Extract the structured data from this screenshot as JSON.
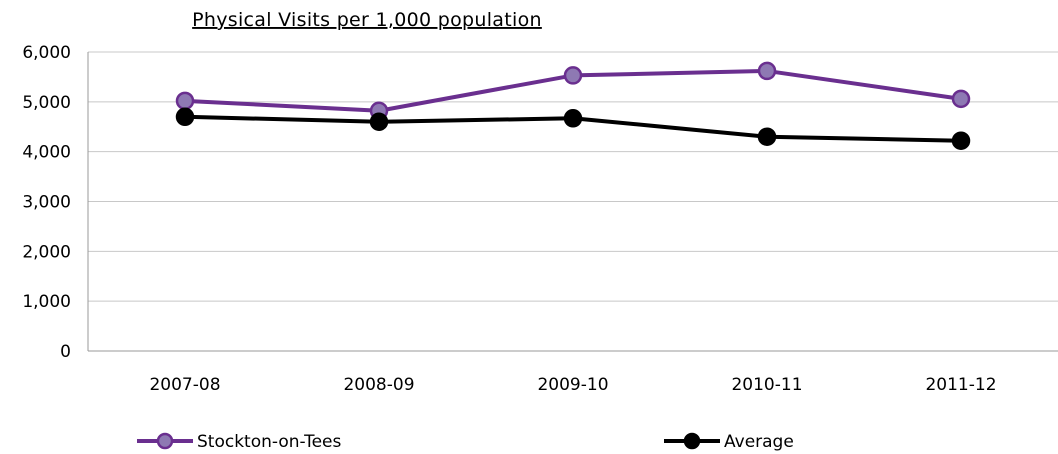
{
  "chart_data": {
    "type": "line",
    "title": "Physical Visits per 1,000 population",
    "xlabel": "",
    "ylabel": "",
    "categories": [
      "2007-08",
      "2008-09",
      "2009-10",
      "2010-11",
      "2011-12"
    ],
    "yticks": [
      "0",
      "1,000",
      "2,000",
      "3,000",
      "4,000",
      "5,000",
      "6,000"
    ],
    "ylim": [
      0,
      6000
    ],
    "grid": true,
    "legend_position": "bottom",
    "series": [
      {
        "name": "Stockton-on-Tees",
        "values": [
          5020,
          4820,
          5530,
          5620,
          5060
        ],
        "color": "#6a2f8f",
        "marker_fill": "#8e79b3"
      },
      {
        "name": "Average",
        "values": [
          4700,
          4600,
          4670,
          4300,
          4220
        ],
        "color": "#000000",
        "marker_fill": "#000000"
      }
    ]
  }
}
